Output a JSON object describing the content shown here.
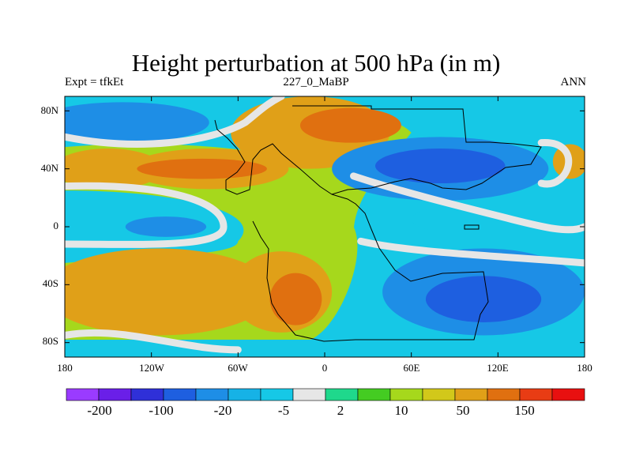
{
  "chart_data": {
    "type": "heatmap",
    "title": "Height perturbation at 500 hPa (in m)",
    "subtitle_left": "Expt = tfkEt",
    "subtitle_center": "227_0_MaBP",
    "subtitle_right": "ANN",
    "x_range": [
      -180,
      180
    ],
    "y_range": [
      -90,
      90
    ],
    "x_tick_labels": [
      "180",
      "120W",
      "60W",
      "0",
      "60E",
      "120E",
      "180"
    ],
    "x_tick_values": [
      -180,
      -120,
      -60,
      0,
      60,
      120,
      180
    ],
    "y_tick_labels": [
      "80N",
      "40N",
      "0",
      "40S",
      "80S"
    ],
    "y_tick_values": [
      80,
      40,
      0,
      -40,
      -80
    ],
    "colorbar": {
      "levels": [
        "-200",
        "-100",
        "-20",
        "-5",
        "2",
        "10",
        "50",
        "150"
      ],
      "colors": [
        "#9a3bff",
        "#6a1fe8",
        "#2f30d8",
        "#1e5fe0",
        "#1e8ee6",
        "#16b2e6",
        "#16c8e6",
        "#e6e6e6",
        "#1fd88c",
        "#44cc22",
        "#a6d81c",
        "#d2c81a",
        "#e0a018",
        "#e07010",
        "#e83c14",
        "#e81010"
      ]
    },
    "field_blobs": [
      {
        "lon": -140,
        "lat": 72,
        "rlon": 60,
        "rlat": 14,
        "level": "-20"
      },
      {
        "lon": -150,
        "lat": 40,
        "rlon": 38,
        "rlat": 14,
        "level": "50"
      },
      {
        "lon": -80,
        "lat": 40,
        "rlon": 55,
        "rlat": 14,
        "level": "50"
      },
      {
        "lon": -85,
        "lat": 40,
        "rlon": 45,
        "rlat": 7,
        "level": "150"
      },
      {
        "lon": -150,
        "lat": 5,
        "rlon": 60,
        "rlat": 16,
        "level": "-5"
      },
      {
        "lon": -110,
        "lat": 0,
        "rlon": 28,
        "rlat": 7,
        "level": "-20"
      },
      {
        "lon": -115,
        "lat": -45,
        "rlon": 80,
        "rlat": 30,
        "level": "50"
      },
      {
        "lon": -30,
        "lat": -45,
        "rlon": 35,
        "rlat": 28,
        "level": "50"
      },
      {
        "lon": -20,
        "lat": -50,
        "rlon": 18,
        "rlat": 18,
        "level": "150"
      },
      {
        "lon": -10,
        "lat": 65,
        "rlon": 55,
        "rlat": 25,
        "level": "50"
      },
      {
        "lon": 18,
        "lat": 70,
        "rlon": 35,
        "rlat": 12,
        "level": "150"
      },
      {
        "lon": 80,
        "lat": 40,
        "rlon": 75,
        "rlat": 22,
        "level": "-20"
      },
      {
        "lon": 80,
        "lat": 42,
        "rlon": 45,
        "rlat": 12,
        "level": "-100"
      },
      {
        "lon": 110,
        "lat": -45,
        "rlon": 70,
        "rlat": 30,
        "level": "-20"
      },
      {
        "lon": 110,
        "lat": -50,
        "rlon": 40,
        "rlat": 16,
        "level": "-100"
      },
      {
        "lon": 170,
        "lat": 45,
        "rlon": 12,
        "rlat": 12,
        "level": "50"
      },
      {
        "lon": 100,
        "lat": 5,
        "rlon": 40,
        "rlat": 10,
        "level": "-5"
      }
    ],
    "grid": false,
    "legend_position": "bottom"
  }
}
